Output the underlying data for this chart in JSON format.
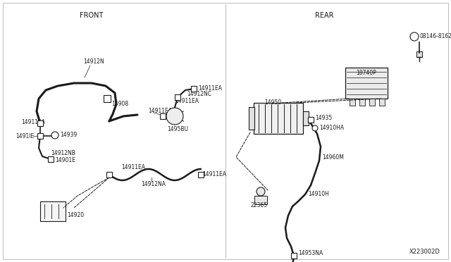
{
  "bg_color": "#ffffff",
  "line_color": "#1a1a1a",
  "text_color": "#1a1a1a",
  "dashed_color": "#444444",
  "front_label": "FRONT",
  "rear_label": "REAR",
  "diagram_code": "X223002D",
  "figw": 6.4,
  "figh": 3.72,
  "dpi": 100
}
